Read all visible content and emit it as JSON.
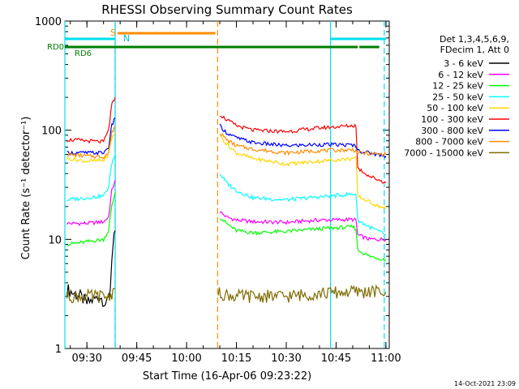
{
  "chart_data": {
    "type": "line",
    "title": "RHESSI Observing Summary Count Rates",
    "xlabel": "Start Time (16-Apr-06 09:23:22)",
    "ylabel": "Count Rate (s⁻¹ detector⁻¹)",
    "yscale": "log",
    "ylim": [
      1,
      1000
    ],
    "xlim": [
      "09:23:22",
      "11:01:00"
    ],
    "xticks": [
      "09:30",
      "09:45",
      "10:00",
      "10:15",
      "10:30",
      "10:45",
      "11:00"
    ],
    "yticks": [
      "1",
      "10",
      "100",
      "1000"
    ],
    "legend_header": [
      "Det 1,3,4,5,6,9,",
      "FDecim 1, Att 0"
    ],
    "legend_position": "right",
    "timestamp": "14-Oct-2021 23:09",
    "flags": [
      {
        "name": "S",
        "color": "#ff8c00",
        "segments": [
          [
            "09:39:15",
            "10:08:40"
          ]
        ]
      },
      {
        "name": "N",
        "color": "#00e0f0",
        "segments": [
          [
            "09:23:22",
            "09:38:30"
          ],
          [
            "10:43:20",
            "11:00:00"
          ]
        ]
      },
      {
        "name": "RD0",
        "color": "#007f00",
        "segments": [
          [
            "09:23:22",
            "10:51:30"
          ],
          [
            "10:52:00",
            "10:58:00"
          ]
        ]
      },
      {
        "name": "RD6",
        "color": "#007f00",
        "segments": []
      }
    ],
    "vertical_lines": [
      {
        "time": "09:23:22",
        "color": "#00e0f0",
        "style": "solid"
      },
      {
        "time": "09:38:30",
        "color": "#ff8c00",
        "style": "dashed"
      },
      {
        "time": "09:38:30",
        "color": "#00e0f0",
        "style": "solid"
      },
      {
        "time": "10:09:20",
        "color": "#ff8c00",
        "style": "dashed"
      },
      {
        "time": "10:43:20",
        "color": "#00e0f0",
        "style": "solid"
      },
      {
        "time": "10:59:30",
        "color": "#00e0f0",
        "style": "dashed"
      }
    ],
    "series": [
      {
        "name": "3 - 6 keV",
        "color": "#000000",
        "segments": [
          [
            [
              "09:24:00",
              3.5
            ],
            [
              "09:26:00",
              3.2
            ],
            [
              "09:28:00",
              3.0
            ],
            [
              "09:30:00",
              2.6
            ],
            [
              "09:32:00",
              2.8
            ],
            [
              "09:34:00",
              3.0
            ],
            [
              "09:36:00",
              2.5
            ],
            [
              "09:37:00",
              3.5
            ],
            [
              "09:37:30",
              7.0
            ],
            [
              "09:38:30",
              12.0
            ]
          ]
        ]
      },
      {
        "name": "6 - 12 keV",
        "color": "#ff00ff",
        "segments": [
          [
            [
              "09:24:00",
              14
            ],
            [
              "09:30:00",
              14
            ],
            [
              "09:35:00",
              14.5
            ],
            [
              "09:36:30",
              16
            ],
            [
              "09:37:30",
              28
            ],
            [
              "09:38:30",
              35
            ]
          ],
          [
            [
              "10:10:00",
              18
            ],
            [
              "10:12:00",
              16
            ],
            [
              "10:15:00",
              15
            ],
            [
              "10:20:00",
              14.5
            ],
            [
              "10:30:00",
              14.3
            ],
            [
              "10:40:00",
              15
            ],
            [
              "10:50:00",
              15.2
            ],
            [
              "10:51:00",
              15
            ],
            [
              "10:51:30",
              11
            ],
            [
              "10:55:00",
              10
            ],
            [
              "11:00:00",
              10
            ]
          ]
        ]
      },
      {
        "name": "12 - 25 keV",
        "color": "#00ff00",
        "segments": [
          [
            [
              "09:24:00",
              9
            ],
            [
              "09:30:00",
              9.5
            ],
            [
              "09:35:00",
              10
            ],
            [
              "09:36:30",
              12
            ],
            [
              "09:37:30",
              20
            ],
            [
              "09:38:30",
              27
            ]
          ],
          [
            [
              "10:10:00",
              16
            ],
            [
              "10:12:00",
              14
            ],
            [
              "10:15:00",
              12
            ],
            [
              "10:20:00",
              11.5
            ],
            [
              "10:30:00",
              11.8
            ],
            [
              "10:40:00",
              12.5
            ],
            [
              "10:50:00",
              13
            ],
            [
              "10:51:00",
              12.5
            ],
            [
              "10:51:30",
              8
            ],
            [
              "10:55:00",
              7
            ],
            [
              "11:00:00",
              6.5
            ]
          ]
        ]
      },
      {
        "name": "25 - 50 keV",
        "color": "#00ffff",
        "segments": [
          [
            [
              "09:24:00",
              23
            ],
            [
              "09:30:00",
              24
            ],
            [
              "09:35:00",
              25
            ],
            [
              "09:36:30",
              30
            ],
            [
              "09:37:30",
              50
            ],
            [
              "09:38:30",
              60
            ]
          ],
          [
            [
              "10:10:00",
              40
            ],
            [
              "10:12:00",
              33
            ],
            [
              "10:15:00",
              28
            ],
            [
              "10:20:00",
              24
            ],
            [
              "10:30:00",
              23
            ],
            [
              "10:40:00",
              24.5
            ],
            [
              "10:50:00",
              26
            ],
            [
              "10:51:00",
              26
            ],
            [
              "10:51:30",
              15
            ],
            [
              "10:55:00",
              13
            ],
            [
              "11:00:00",
              11
            ]
          ]
        ]
      },
      {
        "name": "50 - 100 keV",
        "color": "#ffd700",
        "segments": [
          [
            [
              "09:24:00",
              55
            ],
            [
              "09:30:00",
              52
            ],
            [
              "09:35:00",
              53
            ],
            [
              "09:36:30",
              60
            ],
            [
              "09:37:30",
              85
            ],
            [
              "09:38:30",
              95
            ]
          ],
          [
            [
              "10:10:00",
              90
            ],
            [
              "10:12:00",
              75
            ],
            [
              "10:15:00",
              62
            ],
            [
              "10:20:00",
              55
            ],
            [
              "10:30:00",
              49
            ],
            [
              "10:40:00",
              52
            ],
            [
              "10:50:00",
              55
            ],
            [
              "10:51:00",
              55
            ],
            [
              "10:51:30",
              25
            ],
            [
              "10:55:00",
              22
            ],
            [
              "11:00:00",
              19
            ]
          ]
        ]
      },
      {
        "name": "100 - 300 keV",
        "color": "#ff0000",
        "segments": [
          [
            [
              "09:24:00",
              82
            ],
            [
              "09:30:00",
              80
            ],
            [
              "09:35:00",
              78
            ],
            [
              "09:36:30",
              100
            ],
            [
              "09:37:30",
              170
            ],
            [
              "09:38:30",
              200
            ]
          ],
          [
            [
              "10:10:00",
              140
            ],
            [
              "10:12:00",
              125
            ],
            [
              "10:15:00",
              110
            ],
            [
              "10:20:00",
              100
            ],
            [
              "10:30:00",
              97
            ],
            [
              "10:40:00",
              105
            ],
            [
              "10:50:00",
              110
            ],
            [
              "10:51:00",
              110
            ],
            [
              "10:51:30",
              45
            ],
            [
              "10:55:00",
              38
            ],
            [
              "11:00:00",
              33
            ]
          ]
        ]
      },
      {
        "name": "300 - 800 keV",
        "color": "#0000ff",
        "segments": [
          [
            [
              "09:24:00",
              62
            ],
            [
              "09:30:00",
              62
            ],
            [
              "09:35:00",
              62
            ],
            [
              "09:36:30",
              70
            ],
            [
              "09:37:30",
              110
            ],
            [
              "09:38:30",
              130
            ]
          ],
          [
            [
              "10:10:00",
              110
            ],
            [
              "10:12:00",
              95
            ],
            [
              "10:15:00",
              85
            ],
            [
              "10:20:00",
              77
            ],
            [
              "10:30:00",
              72
            ],
            [
              "10:40:00",
              74
            ],
            [
              "10:50:00",
              73
            ],
            [
              "10:51:00",
              72
            ],
            [
              "10:51:30",
              65
            ],
            [
              "10:55:00",
              62
            ],
            [
              "11:00:00",
              58
            ]
          ]
        ]
      },
      {
        "name": "800 - 7000 keV",
        "color": "#ff8c00",
        "segments": [
          [
            [
              "09:24:00",
              60
            ],
            [
              "09:30:00",
              58
            ],
            [
              "09:35:00",
              57
            ],
            [
              "09:36:30",
              62
            ],
            [
              "09:37:30",
              95
            ],
            [
              "09:38:30",
              110
            ]
          ],
          [
            [
              "10:10:00",
              95
            ],
            [
              "10:12:00",
              82
            ],
            [
              "10:15:00",
              72
            ],
            [
              "10:20:00",
              67
            ],
            [
              "10:30:00",
              62
            ],
            [
              "10:40:00",
              65
            ],
            [
              "10:50:00",
              66
            ],
            [
              "10:51:00",
              65
            ],
            [
              "10:51:30",
              62
            ],
            [
              "10:55:00",
              61
            ],
            [
              "11:00:00",
              60
            ]
          ]
        ]
      },
      {
        "name": "7000 - 15000 keV",
        "color": "#7f6b00",
        "segments": [
          [
            [
              "09:24:00",
              3.0
            ],
            [
              "09:30:00",
              3.0
            ],
            [
              "09:35:00",
              3.0
            ],
            [
              "09:36:30",
              3.0
            ],
            [
              "09:37:30",
              3.2
            ],
            [
              "09:38:30",
              3.5
            ]
          ],
          [
            [
              "10:09:30",
              3.2
            ],
            [
              "10:15:00",
              3.0
            ],
            [
              "10:20:00",
              3.0
            ],
            [
              "10:30:00",
              3.0
            ],
            [
              "10:40:00",
              3.2
            ],
            [
              "10:50:00",
              3.3
            ],
            [
              "11:00:00",
              3.3
            ]
          ]
        ]
      }
    ]
  }
}
